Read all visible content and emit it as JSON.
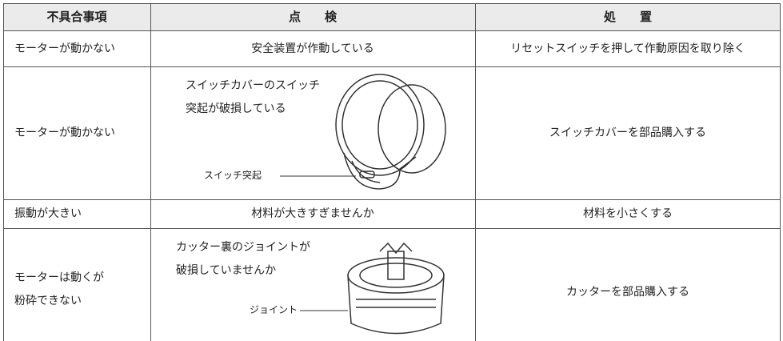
{
  "table": {
    "header": [
      "不具合事項",
      "点　　検",
      "処　　置"
    ],
    "rows": [
      {
        "problem": [
          "モーターが動かない"
        ],
        "check": [
          "安全装置が作動している"
        ],
        "fix": "リセットスイッチを押して作動原因を取り除く"
      },
      {
        "problem": [
          "モーターが動かない"
        ],
        "check": [
          "スイッチカバーのスイッチ",
          "突起が破損している"
        ],
        "callout": "スイッチ突起",
        "fix": "スイッチカバーを部品購入する"
      },
      {
        "problem": [
          "振動が大きい"
        ],
        "check": [
          "材料が大きすぎませんか"
        ],
        "fix": "材料を小さくする"
      },
      {
        "problem": [
          "モーターは動くが",
          "粉砕できない"
        ],
        "check": [
          "カッター裏のジョイントが",
          "破損していませんか"
        ],
        "callout": "ジョイント",
        "fix": "カッターを部品購入する"
      }
    ]
  }
}
